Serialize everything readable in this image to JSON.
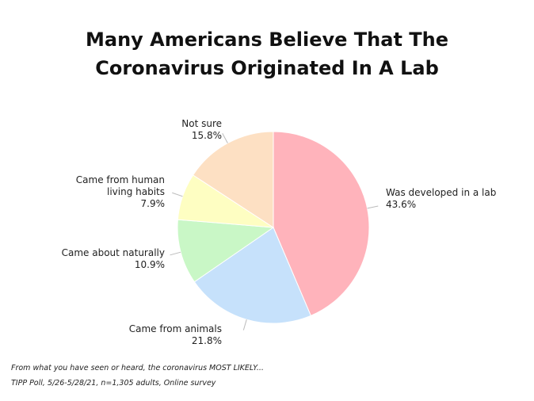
{
  "chart_data": {
    "type": "pie",
    "title": "Many Americans Believe That The Coronavirus Originated In A Lab",
    "categories": [
      "Was developed in a lab",
      "Came from animals",
      "Came about naturally",
      "Came from human living habits",
      "Not sure"
    ],
    "values": [
      43.6,
      21.8,
      10.9,
      7.9,
      15.8
    ],
    "value_labels": [
      "43.6%",
      "21.8%",
      "10.9%",
      "7.9%",
      "15.8%"
    ],
    "colors": [
      "#ffb3bb",
      "#c6e1fb",
      "#c9f7c6",
      "#fefec2",
      "#fde0c3"
    ],
    "notes": [
      "From what you have seen or heard, the coronavirus MOST LIKELY...",
      "TIPP Poll, 5/26-5/28/21, n=1,305 adults, Online survey"
    ]
  }
}
